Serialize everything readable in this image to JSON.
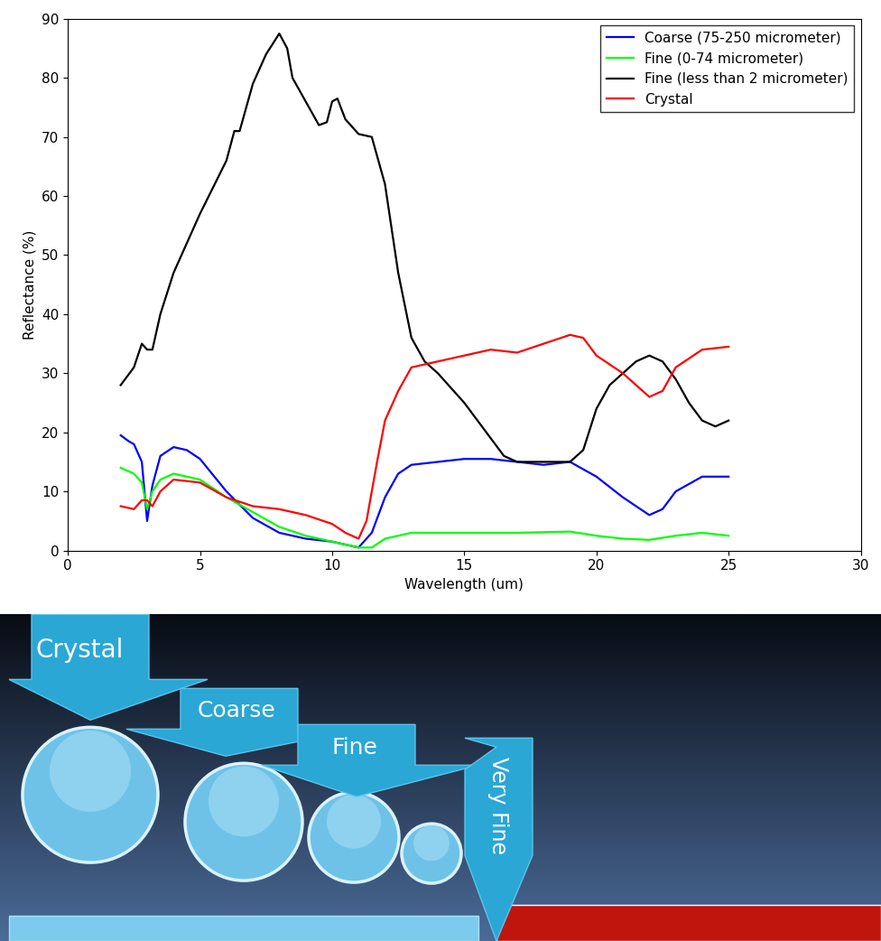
{
  "chart_data": {
    "type": "line",
    "x_label": "Wavelength (um)",
    "y_label": "Reflectance (%)",
    "xlim": [
      0,
      30
    ],
    "xticks": [
      0,
      5,
      10,
      15,
      20,
      25,
      30
    ],
    "ylim": [
      0,
      90
    ],
    "yticks": [
      0,
      10,
      20,
      30,
      40,
      50,
      60,
      70,
      80,
      90
    ],
    "grid": false,
    "legend": "upper right",
    "series": [
      {
        "name": "Coarse (75-250 micrometer)",
        "color": "#0000ff",
        "x": [
          2,
          2.3,
          2.5,
          2.8,
          3,
          3.2,
          3.5,
          4,
          4.5,
          5,
          6,
          7,
          8,
          9,
          10,
          11,
          11.5,
          12,
          12.5,
          13,
          14,
          15,
          16,
          17,
          18,
          19,
          20,
          21,
          22,
          22.5,
          23,
          24,
          25
        ],
        "values": [
          19.5,
          18.5,
          18,
          15,
          5,
          11,
          16,
          17.5,
          17,
          15.5,
          10,
          5.5,
          3,
          2,
          1.5,
          0.5,
          3,
          9,
          13,
          14.5,
          15,
          15.5,
          15.5,
          15,
          14.5,
          15,
          12.5,
          9,
          6,
          7,
          10,
          12.5,
          12.5
        ]
      },
      {
        "name": "Fine (0-74 micrometer)",
        "color": "#00ff00",
        "x": [
          2,
          2.5,
          2.8,
          3,
          3.2,
          3.5,
          4,
          5,
          6,
          7,
          8,
          9,
          10,
          11,
          11.5,
          12,
          13,
          15,
          17,
          19,
          20,
          21,
          22,
          23,
          24,
          25
        ],
        "values": [
          14,
          13,
          11.5,
          7,
          10,
          12,
          13,
          12,
          9,
          6.5,
          4,
          2.5,
          1.5,
          0.5,
          0.5,
          2,
          3,
          3,
          3,
          3.2,
          2.5,
          2,
          1.8,
          2.5,
          3,
          2.5
        ]
      },
      {
        "name": "Fine (less than 2 micrometer)",
        "color": "#000000",
        "x": [
          2,
          2.5,
          2.8,
          3,
          3.2,
          3.5,
          4,
          5,
          6,
          6.3,
          6.5,
          7,
          7.5,
          8,
          8.3,
          8.5,
          9,
          9.5,
          9.8,
          10,
          10.2,
          10.5,
          11,
          11.5,
          12,
          12.5,
          13,
          13.5,
          14,
          15,
          16,
          16.5,
          17,
          18,
          19,
          19.5,
          20,
          20.5,
          21,
          21.5,
          22,
          22.5,
          23,
          23.5,
          24,
          24.5,
          25
        ],
        "values": [
          28,
          31,
          35,
          34,
          34,
          40,
          47,
          57,
          66,
          71,
          71,
          79,
          84,
          87.5,
          85,
          80,
          76,
          72,
          72.5,
          76,
          76.5,
          73,
          70.5,
          70,
          62,
          47,
          36,
          32,
          30,
          25,
          19,
          16,
          15,
          15,
          15,
          17,
          24,
          28,
          30,
          32,
          33,
          32,
          29,
          25,
          22,
          21,
          22
        ]
      },
      {
        "name": "Crystal",
        "color": "#ff0000",
        "x": [
          2,
          2.5,
          2.8,
          3,
          3.2,
          3.5,
          4,
          5,
          6,
          7,
          8,
          9,
          10,
          10.5,
          11,
          11.3,
          11.7,
          12,
          12.5,
          13,
          14,
          15,
          16,
          17,
          18,
          19,
          19.5,
          20,
          21,
          22,
          22.5,
          23,
          24,
          25
        ],
        "values": [
          7.5,
          7,
          8.5,
          8.5,
          7.5,
          10,
          12,
          11.5,
          9,
          7.5,
          7,
          6,
          4.5,
          3,
          2,
          5,
          15,
          22,
          27,
          31,
          32,
          33,
          34,
          33.5,
          35,
          36.5,
          36,
          33,
          30,
          26,
          27,
          31,
          34,
          34.5
        ]
      }
    ]
  },
  "diagram": {
    "labels": {
      "crystal": "Crystal",
      "coarse": "Coarse",
      "fine": "Fine",
      "very_fine": "Very Fine"
    }
  }
}
